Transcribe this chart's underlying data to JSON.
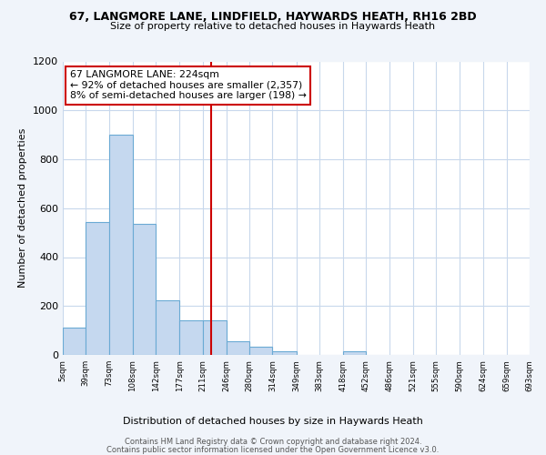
{
  "title1": "67, LANGMORE LANE, LINDFIELD, HAYWARDS HEATH, RH16 2BD",
  "title2": "Size of property relative to detached houses in Haywards Heath",
  "xlabel": "Distribution of detached houses by size in Haywards Heath",
  "ylabel": "Number of detached properties",
  "bin_edges": [
    5,
    39,
    73,
    108,
    142,
    177,
    211,
    246,
    280,
    314,
    349,
    383,
    418,
    452,
    486,
    521,
    555,
    590,
    624,
    659,
    693
  ],
  "bar_heights": [
    110,
    545,
    900,
    535,
    225,
    140,
    140,
    55,
    35,
    15,
    0,
    0,
    15,
    0,
    0,
    0,
    0,
    0,
    0,
    0
  ],
  "bar_color": "#c5d8ef",
  "bar_edge_color": "#6aaad4",
  "reference_line_x": 224,
  "reference_line_color": "#cc0000",
  "annotation_line1": "67 LANGMORE LANE: 224sqm",
  "annotation_line2": "← 92% of detached houses are smaller (2,357)",
  "annotation_line3": "8% of semi-detached houses are larger (198) →",
  "ylim": [
    0,
    1200
  ],
  "yticks": [
    0,
    200,
    400,
    600,
    800,
    1000,
    1200
  ],
  "tick_labels": [
    "5sqm",
    "39sqm",
    "73sqm",
    "108sqm",
    "142sqm",
    "177sqm",
    "211sqm",
    "246sqm",
    "280sqm",
    "314sqm",
    "349sqm",
    "383sqm",
    "418sqm",
    "452sqm",
    "486sqm",
    "521sqm",
    "555sqm",
    "590sqm",
    "624sqm",
    "659sqm",
    "693sqm"
  ],
  "footer1": "Contains HM Land Registry data © Crown copyright and database right 2024.",
  "footer2": "Contains public sector information licensed under the Open Government Licence v3.0.",
  "bg_color": "#f0f4fa",
  "plot_bg_color": "#ffffff",
  "grid_color": "#c8d8ec"
}
